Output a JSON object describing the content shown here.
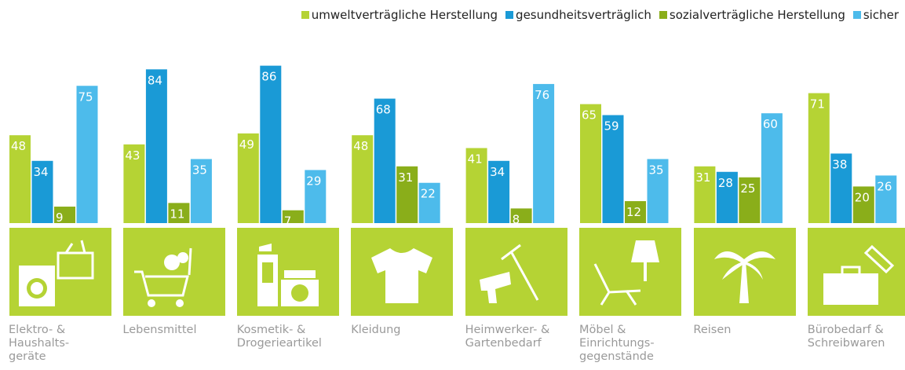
{
  "chart_data": {
    "type": "bar",
    "categories": [
      "Elektro- &\nHaushalts-\ngeräte",
      "Lebensmittel",
      "Kosmetik- &\nDrogerieartikel",
      "Kleidung",
      "Heimwerker- &\nGartenbedarf",
      "Möbel &\nEinrichtungs-\ngegenstände",
      "Reisen",
      "Bürobedarf &\nSchreibwaren"
    ],
    "series": [
      {
        "name": "umweltverträgliche Herstellung",
        "color": "#b5d334",
        "values": [
          48,
          43,
          49,
          48,
          41,
          65,
          31,
          71
        ]
      },
      {
        "name": "gesundheitsverträglich",
        "color": "#1a9ad6",
        "values": [
          34,
          84,
          86,
          68,
          34,
          59,
          28,
          38
        ]
      },
      {
        "name": "sozialverträgliche Herstellung",
        "color": "#8aae1a",
        "values": [
          9,
          11,
          7,
          31,
          8,
          12,
          25,
          20
        ]
      },
      {
        "name": "sicher",
        "color": "#4dbbeb",
        "values": [
          75,
          35,
          29,
          22,
          76,
          35,
          60,
          26
        ]
      }
    ],
    "ylim": [
      0,
      100
    ]
  }
}
